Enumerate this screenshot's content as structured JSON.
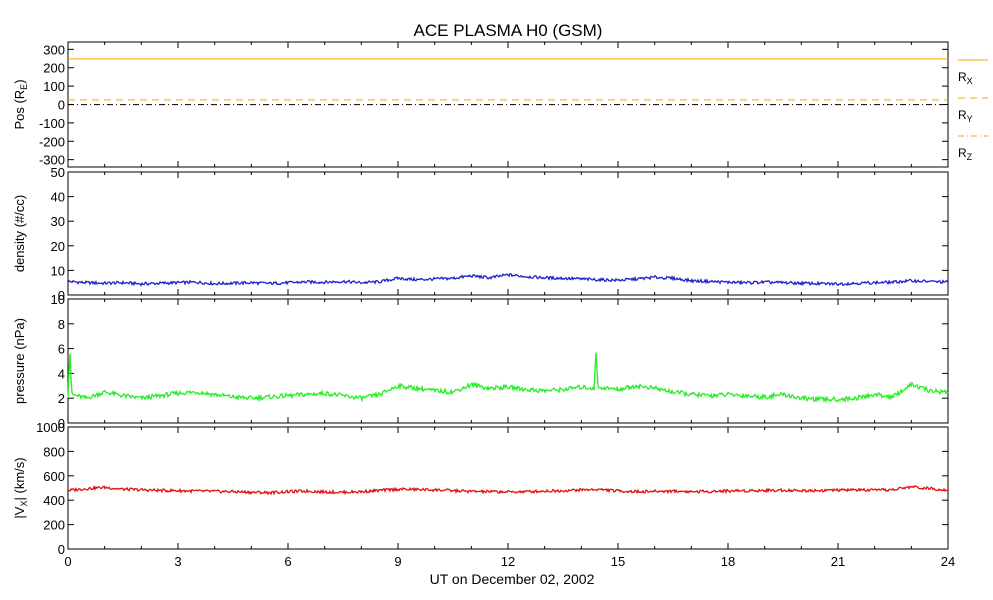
{
  "chart_data": {
    "title": "ACE PLASMA H0 (GSM)",
    "xlabel": "UT on December 02, 2002",
    "x_ticks": [
      "0",
      "3",
      "6",
      "9",
      "12",
      "15",
      "18",
      "21",
      "24"
    ],
    "xlim": [
      0,
      24
    ],
    "panels": [
      {
        "id": "pos",
        "type": "line",
        "ylabel_main": "Pos (R",
        "ylabel_sub": "E",
        "ylabel_tail": ")",
        "ylim": [
          -340,
          340
        ],
        "y_ticks": [
          "300",
          "200",
          "100",
          "0",
          "-100",
          "-200",
          "-300"
        ],
        "y_tick_values": [
          300,
          200,
          100,
          0,
          -100,
          -200,
          -300
        ],
        "series": [
          {
            "name_main": "R",
            "name_sub": "X",
            "color": "#ffa500",
            "dash": "solid",
            "value": 248
          },
          {
            "name_main": "R",
            "name_sub": "Y",
            "color": "#ffa500",
            "dash": "dashed",
            "value": 25
          },
          {
            "name_main": "R",
            "name_sub": "Z",
            "color": "#000000",
            "dash": "dashdot",
            "value": -1
          }
        ]
      },
      {
        "id": "density",
        "type": "line",
        "ylabel_main": "density (#/cc)",
        "ylim": [
          0,
          50
        ],
        "y_ticks": [
          "50",
          "40",
          "30",
          "20",
          "10",
          "0"
        ],
        "y_tick_values": [
          50,
          40,
          30,
          20,
          10,
          0
        ],
        "color": "#2020c8",
        "x": [
          0,
          0.5,
          1,
          1.5,
          2,
          2.5,
          3,
          3.5,
          4,
          4.5,
          5,
          5.5,
          6,
          6.5,
          7,
          7.5,
          8,
          8.5,
          9,
          9.5,
          10,
          10.5,
          11,
          11.5,
          12,
          12.5,
          13,
          13.5,
          14,
          14.5,
          15,
          15.5,
          16,
          16.5,
          17,
          17.5,
          18,
          18.5,
          19,
          19.5,
          20,
          20.5,
          21,
          21.5,
          22,
          22.5,
          23,
          23.5,
          24
        ],
        "values": [
          5.5,
          5.0,
          4.8,
          5.0,
          4.5,
          4.8,
          5.0,
          5.2,
          4.6,
          4.8,
          5.0,
          4.7,
          5.0,
          5.3,
          5.2,
          5.5,
          5.0,
          5.4,
          6.8,
          6.2,
          6.5,
          6.8,
          7.8,
          7.0,
          8.2,
          7.5,
          7.0,
          6.8,
          6.5,
          6.2,
          6.0,
          6.5,
          7.2,
          6.8,
          5.8,
          5.5,
          5.2,
          5.0,
          5.2,
          5.0,
          4.8,
          4.6,
          4.5,
          4.8,
          5.0,
          5.2,
          5.8,
          5.5,
          5.2
        ]
      },
      {
        "id": "pressure",
        "type": "line",
        "ylabel_main": "pressure (nPa)",
        "ylim": [
          0,
          10
        ],
        "y_ticks": [
          "10",
          "8",
          "6",
          "4",
          "2",
          "0"
        ],
        "y_tick_values": [
          10,
          8,
          6,
          4,
          2,
          0
        ],
        "color": "#22ee22",
        "x": [
          0,
          0.05,
          0.1,
          0.5,
          1,
          1.5,
          2,
          2.5,
          3,
          3.5,
          4,
          4.5,
          5,
          5.5,
          6,
          6.5,
          7,
          7.5,
          8,
          8.5,
          9,
          9.5,
          10,
          10.5,
          11,
          11.5,
          12,
          12.5,
          13,
          13.5,
          14,
          14.35,
          14.4,
          14.45,
          15,
          15.5,
          16,
          16.5,
          17,
          17.5,
          18,
          18.5,
          19,
          19.5,
          20,
          20.5,
          21,
          21.5,
          22,
          22.5,
          23,
          23.5,
          24
        ],
        "values": [
          2.2,
          6.0,
          2.3,
          2.0,
          2.5,
          2.2,
          2.0,
          2.2,
          2.4,
          2.5,
          2.3,
          2.1,
          2.0,
          2.1,
          2.2,
          2.3,
          2.4,
          2.2,
          2.0,
          2.3,
          3.0,
          2.8,
          2.6,
          2.5,
          3.1,
          2.8,
          2.9,
          2.7,
          2.6,
          2.7,
          2.9,
          2.8,
          5.8,
          2.9,
          2.7,
          3.0,
          2.8,
          2.5,
          2.3,
          2.2,
          2.3,
          2.2,
          2.1,
          2.3,
          2.0,
          1.9,
          1.9,
          2.0,
          2.3,
          2.1,
          3.1,
          2.6,
          2.5
        ]
      },
      {
        "id": "vx",
        "type": "line",
        "ylabel_main": "|V",
        "ylabel_sub": "X",
        "ylabel_tail": "| (km/s)",
        "ylim": [
          0,
          1000
        ],
        "y_ticks": [
          "1000",
          "800",
          "600",
          "400",
          "200",
          "0"
        ],
        "y_tick_values": [
          1000,
          800,
          600,
          400,
          200,
          0
        ],
        "color": "#e01010",
        "x": [
          0,
          0.5,
          1,
          1.5,
          2,
          2.5,
          3,
          3.5,
          4,
          4.5,
          5,
          5.5,
          6,
          6.5,
          7,
          7.5,
          8,
          8.5,
          9,
          9.5,
          10,
          10.5,
          11,
          11.5,
          12,
          12.5,
          13,
          13.5,
          14,
          14.5,
          15,
          15.5,
          16,
          16.5,
          17,
          17.5,
          18,
          18.5,
          19,
          19.5,
          20,
          20.5,
          21,
          21.5,
          22,
          22.5,
          23,
          23.5,
          24
        ],
        "values": [
          480,
          495,
          505,
          490,
          485,
          480,
          478,
          475,
          472,
          470,
          465,
          462,
          470,
          475,
          468,
          465,
          470,
          480,
          490,
          488,
          485,
          478,
          472,
          470,
          468,
          470,
          475,
          478,
          485,
          488,
          476,
          470,
          472,
          475,
          470,
          472,
          476,
          478,
          480,
          482,
          478,
          480,
          482,
          485,
          480,
          486,
          510,
          495,
          485
        ]
      }
    ]
  }
}
